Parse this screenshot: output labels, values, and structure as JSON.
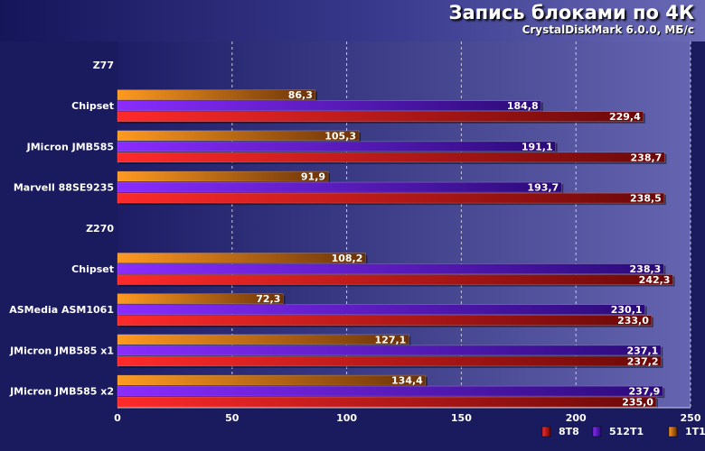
{
  "header": {
    "title": "Запись блоками по 4К",
    "subtitle": "CrystalDiskMark 6.0.0, МБ/с"
  },
  "colors": {
    "background": "#1a1a5e",
    "8T8": "#e8111c",
    "512T1": "#7a22e6",
    "1T1": "#f08c1c",
    "grid": "#c8c8e8"
  },
  "chart_data": {
    "type": "bar",
    "orientation": "horizontal",
    "title": "Запись блоками по 4К",
    "subtitle": "CrystalDiskMark 6.0.0, МБ/с",
    "xlim": [
      0,
      250
    ],
    "xticks": [
      0,
      50,
      100,
      150,
      200,
      250
    ],
    "grid": true,
    "legend_position": "bottom-right",
    "series_order": [
      "1T1",
      "512T1",
      "8T8"
    ],
    "legend_order": [
      "8T8",
      "512T1",
      "1T1"
    ],
    "categories": [
      {
        "label": "Z77",
        "group_header": true
      },
      {
        "label": "Chipset",
        "values": {
          "1T1": 86.3,
          "512T1": 184.8,
          "8T8": 229.4
        },
        "labels": {
          "1T1": "86,3",
          "512T1": "184,8",
          "8T8": "229,4"
        }
      },
      {
        "label": "JMicron JMB585",
        "values": {
          "1T1": 105.3,
          "512T1": 191.1,
          "8T8": 238.7
        },
        "labels": {
          "1T1": "105,3",
          "512T1": "191,1",
          "8T8": "238,7"
        }
      },
      {
        "label": "Marvell 88SE9235",
        "values": {
          "1T1": 91.9,
          "512T1": 193.7,
          "8T8": 238.5
        },
        "labels": {
          "1T1": "91,9",
          "512T1": "193,7",
          "8T8": "238,5"
        }
      },
      {
        "label": "Z270",
        "group_header": true
      },
      {
        "label": "Chipset",
        "values": {
          "1T1": 108.2,
          "512T1": 238.3,
          "8T8": 242.3
        },
        "labels": {
          "1T1": "108,2",
          "512T1": "238,3",
          "8T8": "242,3"
        }
      },
      {
        "label": "ASMedia ASM1061",
        "values": {
          "1T1": 72.3,
          "512T1": 230.1,
          "8T8": 233.0
        },
        "labels": {
          "1T1": "72,3",
          "512T1": "230,1",
          "8T8": "233,0"
        }
      },
      {
        "label": "JMicron JMB585 x1",
        "values": {
          "1T1": 127.1,
          "512T1": 237.1,
          "8T8": 237.2
        },
        "labels": {
          "1T1": "127,1",
          "512T1": "237,1",
          "8T8": "237,2"
        }
      },
      {
        "label": "JMicron JMB585 x2",
        "values": {
          "1T1": 134.4,
          "512T1": 237.9,
          "8T8": 235.0
        },
        "labels": {
          "1T1": "134,4",
          "512T1": "237,9",
          "8T8": "235,0"
        }
      }
    ]
  }
}
